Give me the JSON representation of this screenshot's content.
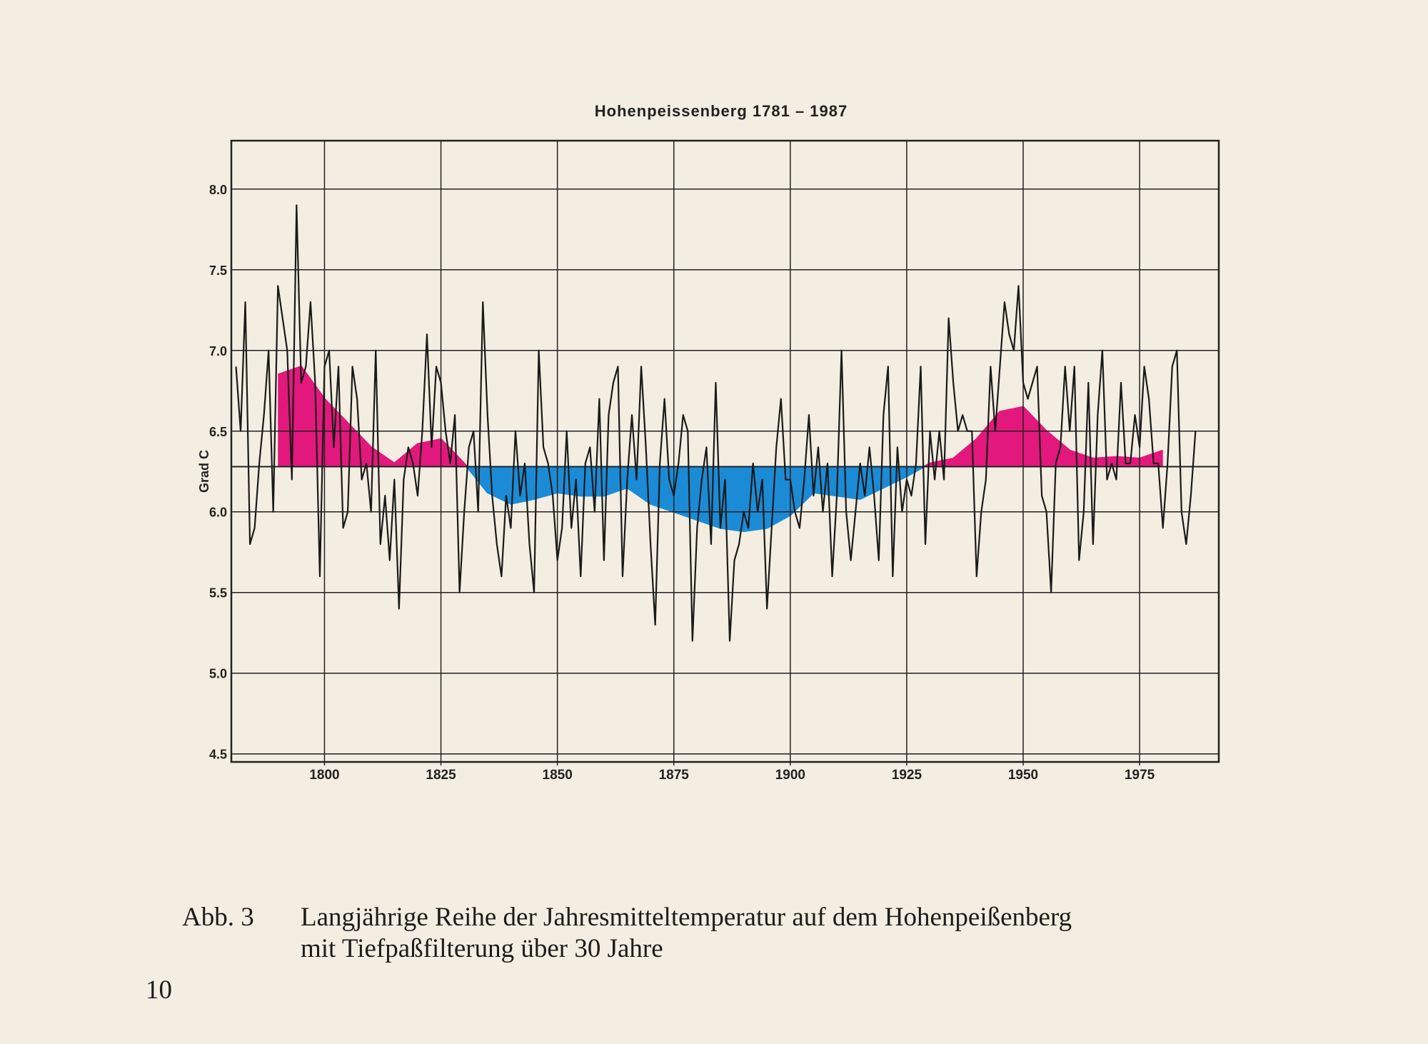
{
  "chart_data": {
    "type": "line",
    "title": "Hohenpeissenberg  1781 – 1987",
    "y_label": "Grad C",
    "xlim": [
      1780,
      1992
    ],
    "ylim": [
      4.45,
      8.3
    ],
    "xticks": [
      1800,
      1825,
      1850,
      1875,
      1900,
      1925,
      1950,
      1975
    ],
    "yticks": [
      {
        "value": 8,
        "label": "8.0"
      },
      7.5,
      {
        "value": 7,
        "label": "7.0"
      },
      6.5,
      {
        "value": 6,
        "label": "6.0"
      },
      5.5,
      {
        "value": 5,
        "label": "5.0"
      },
      4.5
    ],
    "grid": true,
    "baseline": 6.28,
    "above_color": "#e2187c",
    "below_color": "#1b8bd6",
    "series": [
      {
        "name": "Jahresmittel",
        "color": "#1a1a1a",
        "x": [
          1781,
          1782,
          1783,
          1784,
          1785,
          1786,
          1787,
          1788,
          1789,
          1790,
          1791,
          1792,
          1793,
          1794,
          1795,
          1796,
          1797,
          1798,
          1799,
          1800,
          1801,
          1802,
          1803,
          1804,
          1805,
          1806,
          1807,
          1808,
          1809,
          1810,
          1811,
          1812,
          1813,
          1814,
          1815,
          1816,
          1817,
          1818,
          1819,
          1820,
          1821,
          1822,
          1823,
          1824,
          1825,
          1826,
          1827,
          1828,
          1829,
          1830,
          1831,
          1832,
          1833,
          1834,
          1835,
          1836,
          1837,
          1838,
          1839,
          1840,
          1841,
          1842,
          1843,
          1844,
          1845,
          1846,
          1847,
          1848,
          1849,
          1850,
          1851,
          1852,
          1853,
          1854,
          1855,
          1856,
          1857,
          1858,
          1859,
          1860,
          1861,
          1862,
          1863,
          1864,
          1865,
          1866,
          1867,
          1868,
          1869,
          1870,
          1871,
          1872,
          1873,
          1874,
          1875,
          1876,
          1877,
          1878,
          1879,
          1880,
          1881,
          1882,
          1883,
          1884,
          1885,
          1886,
          1887,
          1888,
          1889,
          1890,
          1891,
          1892,
          1893,
          1894,
          1895,
          1896,
          1897,
          1898,
          1899,
          1900,
          1901,
          1902,
          1903,
          1904,
          1905,
          1906,
          1907,
          1908,
          1909,
          1910,
          1911,
          1912,
          1913,
          1914,
          1915,
          1916,
          1917,
          1918,
          1919,
          1920,
          1921,
          1922,
          1923,
          1924,
          1925,
          1926,
          1927,
          1928,
          1929,
          1930,
          1931,
          1932,
          1933,
          1934,
          1935,
          1936,
          1937,
          1938,
          1939,
          1940,
          1941,
          1942,
          1943,
          1944,
          1945,
          1946,
          1947,
          1948,
          1949,
          1950,
          1951,
          1952,
          1953,
          1954,
          1955,
          1956,
          1957,
          1958,
          1959,
          1960,
          1961,
          1962,
          1963,
          1964,
          1965,
          1966,
          1967,
          1968,
          1969,
          1970,
          1971,
          1972,
          1973,
          1974,
          1975,
          1976,
          1977,
          1978,
          1979,
          1980,
          1981,
          1982,
          1983,
          1984,
          1985,
          1986,
          1987
        ],
        "values": [
          6.9,
          6.5,
          7.3,
          5.8,
          5.9,
          6.3,
          6.6,
          7.0,
          6.0,
          7.4,
          7.2,
          7.0,
          6.2,
          7.9,
          6.8,
          6.9,
          7.3,
          6.8,
          5.6,
          6.9,
          7.0,
          6.4,
          6.9,
          5.9,
          6.0,
          6.9,
          6.7,
          6.2,
          6.3,
          6.0,
          7.0,
          5.8,
          6.1,
          5.7,
          6.2,
          5.4,
          6.2,
          6.4,
          6.3,
          6.1,
          6.5,
          7.1,
          6.4,
          6.9,
          6.8,
          6.5,
          6.3,
          6.6,
          5.5,
          6.0,
          6.4,
          6.5,
          6.0,
          7.3,
          6.6,
          6.1,
          5.8,
          5.6,
          6.1,
          5.9,
          6.5,
          6.1,
          6.3,
          5.8,
          5.5,
          7.0,
          6.4,
          6.3,
          6.1,
          5.7,
          5.9,
          6.5,
          5.9,
          6.2,
          5.6,
          6.3,
          6.4,
          6.0,
          6.7,
          5.7,
          6.6,
          6.8,
          6.9,
          5.6,
          6.2,
          6.6,
          6.2,
          6.9,
          6.4,
          5.8,
          5.3,
          6.3,
          6.7,
          6.2,
          6.1,
          6.3,
          6.6,
          6.5,
          5.2,
          5.9,
          6.2,
          6.4,
          5.8,
          6.8,
          5.9,
          6.2,
          5.2,
          5.7,
          5.8,
          6.0,
          5.9,
          6.3,
          6.0,
          6.2,
          5.4,
          5.9,
          6.4,
          6.7,
          6.2,
          6.2,
          6.0,
          5.9,
          6.2,
          6.6,
          6.1,
          6.4,
          6.0,
          6.3,
          5.6,
          6.1,
          7.0,
          6.0,
          5.7,
          6.0,
          6.3,
          6.1,
          6.4,
          6.1,
          5.7,
          6.6,
          6.9,
          5.6,
          6.4,
          6.0,
          6.2,
          6.1,
          6.3,
          6.9,
          5.8,
          6.5,
          6.2,
          6.5,
          6.2,
          7.2,
          6.8,
          6.5,
          6.6,
          6.5,
          6.5,
          5.6,
          6.0,
          6.2,
          6.9,
          6.5,
          6.9,
          7.3,
          7.1,
          7.0,
          7.4,
          6.8,
          6.7,
          6.8,
          6.9,
          6.1,
          6.0,
          5.5,
          6.3,
          6.4,
          6.9,
          6.5,
          6.9,
          5.7,
          6.0,
          6.8,
          5.8,
          6.6,
          7.0,
          6.2,
          6.3,
          6.2,
          6.8,
          6.3,
          6.3,
          6.6,
          6.4,
          6.9,
          6.7,
          6.3,
          6.3,
          5.9,
          6.3,
          6.9,
          7.0,
          6.0,
          5.8,
          6.1,
          6.5
        ]
      },
      {
        "name": "Tiefpaßfilterung über 30 Jahre",
        "color": "#e2187c",
        "filled": true,
        "x": [
          1790,
          1795,
          1800,
          1805,
          1810,
          1815,
          1820,
          1825,
          1830,
          1835,
          1840,
          1845,
          1850,
          1855,
          1860,
          1865,
          1870,
          1875,
          1880,
          1885,
          1890,
          1895,
          1900,
          1905,
          1910,
          1915,
          1920,
          1925,
          1930,
          1935,
          1940,
          1945,
          1950,
          1955,
          1960,
          1965,
          1970,
          1975,
          1980
        ],
        "values": [
          6.85,
          6.9,
          6.7,
          6.55,
          6.4,
          6.3,
          6.42,
          6.45,
          6.3,
          6.12,
          6.05,
          6.08,
          6.12,
          6.1,
          6.1,
          6.15,
          6.05,
          6.0,
          5.95,
          5.9,
          5.88,
          5.9,
          5.98,
          6.12,
          6.1,
          6.08,
          6.15,
          6.22,
          6.3,
          6.33,
          6.45,
          6.62,
          6.65,
          6.5,
          6.38,
          6.33,
          6.34,
          6.33,
          6.38
        ]
      }
    ]
  },
  "caption": {
    "label": "Abb. 3",
    "lines": [
      "Langjährige Reihe der Jahresmitteltemperatur auf dem Hohenpeißenberg",
      "mit Tiefpaßfilterung über 30 Jahre"
    ]
  },
  "page_number": "10"
}
